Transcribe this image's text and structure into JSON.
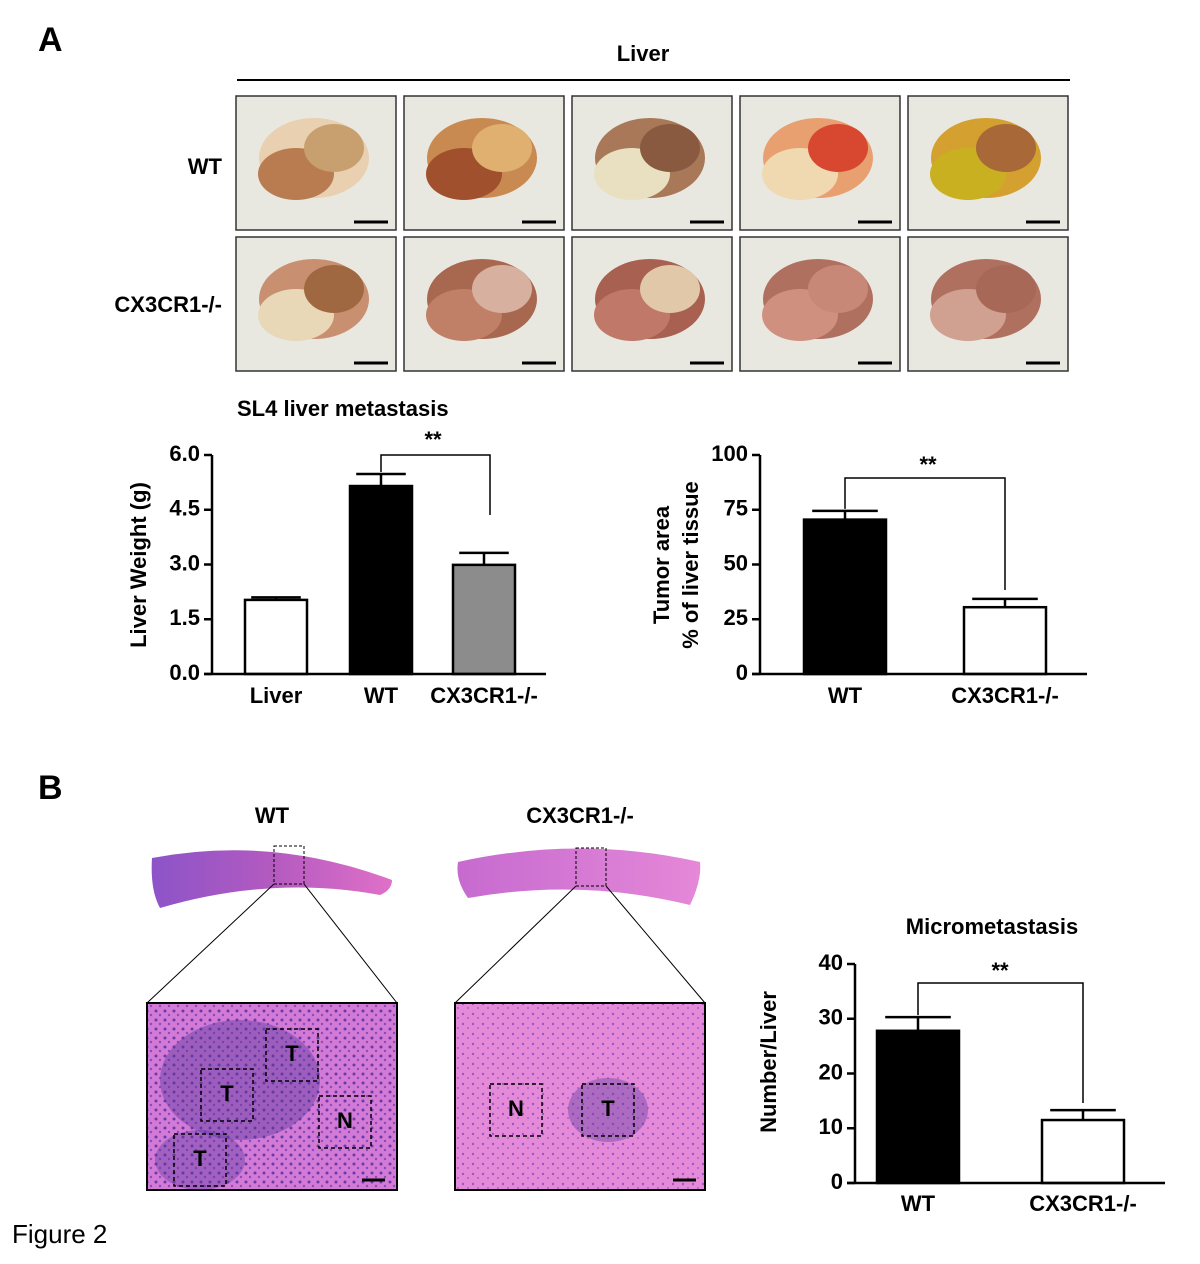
{
  "panel_labels": [
    "A",
    "B"
  ],
  "figure_label": "Figure 2",
  "photo_panel": {
    "title": "Liver",
    "rows": [
      "WT",
      "CX3CR1-/-"
    ]
  },
  "histology": {
    "columns": [
      "WT",
      "CX3CR1-/-"
    ],
    "regions": [
      [
        "T",
        "T",
        "N",
        "T"
      ],
      [
        "N",
        "T"
      ]
    ]
  },
  "chart_data": [
    {
      "type": "bar",
      "title": "SL4 liver metastasis",
      "ylabel": [
        "Liver Weight  (g)"
      ],
      "categories": [
        "Liver",
        "WT",
        "CX3CR1-/-"
      ],
      "values": [
        2.03,
        5.15,
        2.99
      ],
      "errors": [
        0.07,
        0.33,
        0.33
      ],
      "colors": [
        "#ffffff",
        "#000000",
        "#8c8c8c"
      ],
      "ylim": [
        0,
        6
      ],
      "yticks": [
        {
          "value": 0,
          "label": "0.0"
        },
        1.5,
        {
          "value": 3,
          "label": "3.0"
        },
        4.5,
        {
          "value": 6,
          "label": "6.0"
        }
      ],
      "annotation": "**"
    },
    {
      "type": "bar",
      "ylabel": [
        "Tumor area",
        "% of liver tissue"
      ],
      "categories": [
        "WT",
        "CX3CR1-/-"
      ],
      "values": [
        70.5,
        30.5
      ],
      "errors": [
        4,
        3.8
      ],
      "colors": [
        "#000000",
        "#ffffff"
      ],
      "ylim": [
        0,
        100
      ],
      "yticks": [
        0,
        25,
        50,
        75,
        100
      ],
      "annotation": "**"
    },
    {
      "type": "bar",
      "title": "Micrometastasis",
      "ylabel": [
        "Number/Liver"
      ],
      "categories": [
        "WT",
        "CX3CR1-/-"
      ],
      "values": [
        27.8,
        11.5
      ],
      "errors": [
        2.5,
        1.8
      ],
      "colors": [
        "#000000",
        "#ffffff"
      ],
      "ylim": [
        0,
        40
      ],
      "yticks": [
        0,
        10,
        20,
        30,
        40
      ],
      "annotation": "**"
    }
  ]
}
